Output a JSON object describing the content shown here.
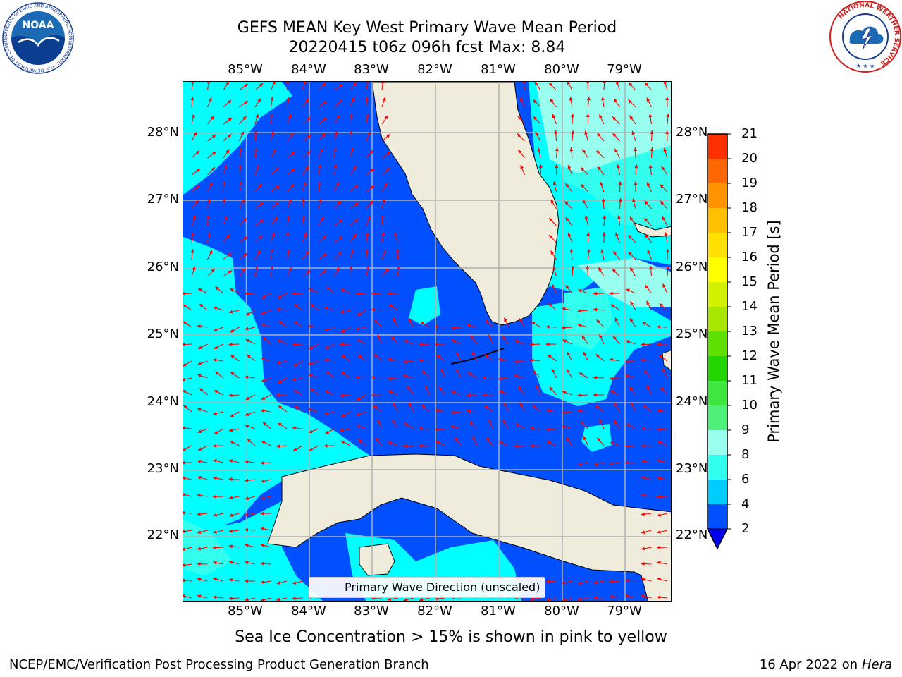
{
  "header": {
    "title_line1": "GEFS MEAN Key West Primary Wave Mean Period",
    "title_line2": "20220415 t06z 096h fcst   Max: 8.84"
  },
  "logos": {
    "noaa_text": "NOAA",
    "noaa_ring": "NATIONAL OCEANIC AND ATMOSPHERIC ADMINISTRATION · U.S. DEPARTMENT OF COMMERCE",
    "nws_ring": "NATIONAL WEATHER SERVICE"
  },
  "map": {
    "lon_ticks": [
      "85°W",
      "84°W",
      "83°W",
      "82°W",
      "81°W",
      "80°W",
      "79°W"
    ],
    "lat_ticks": [
      "28°N",
      "27°N",
      "26°N",
      "25°N",
      "24°N",
      "23°N",
      "22°N"
    ],
    "lon_range": [
      -86.0,
      -78.3
    ],
    "lat_range": [
      21.05,
      28.75
    ],
    "legend_label": "Primary Wave Direction (unscaled)",
    "vector_color": "#ff0000",
    "land_color": "#efecdc"
  },
  "colorbar": {
    "title": "Primary Wave Mean Period [s]",
    "tick_labels": [
      "2",
      "4",
      "6",
      "8",
      "9",
      "10",
      "11",
      "12",
      "13",
      "14",
      "15",
      "16",
      "17",
      "18",
      "19",
      "20",
      "21"
    ],
    "colors": [
      "#0050ff",
      "#00ccff",
      "#33ffee",
      "#99ffee",
      "#4ff07a",
      "#3ee63e",
      "#22d400",
      "#60e000",
      "#a8e600",
      "#d2f000",
      "#ffff00",
      "#ffe000",
      "#ffc000",
      "#ff9400",
      "#ff6800",
      "#ff3000",
      "#ff0000"
    ],
    "extend_color": "#0000ee"
  },
  "note": "Sea Ice Concentration > 15% is shown in pink to yellow",
  "footer": {
    "left": "NCEP/EMC/Verification Post Processing Product Generation Branch",
    "right_prefix": "16 Apr 2022 on ",
    "right_machine": "Hera"
  }
}
